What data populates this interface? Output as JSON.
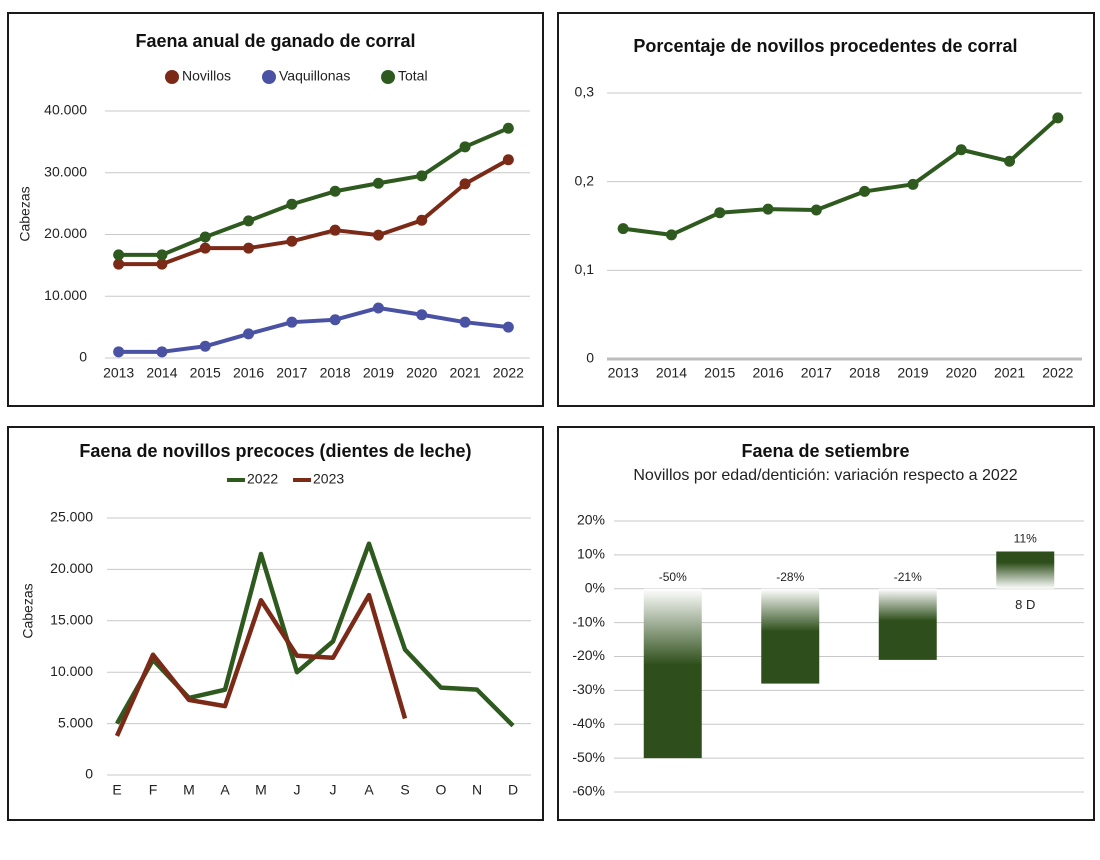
{
  "chart_data": [
    {
      "type": "line",
      "title": "Faena anual de ganado de corral",
      "y_label": "Cabezas",
      "markers": true,
      "grid": true,
      "categories": [
        "2013",
        "2014",
        "2015",
        "2016",
        "2017",
        "2018",
        "2019",
        "2020",
        "2021",
        "2022"
      ],
      "series": [
        {
          "name": "Novillos",
          "color": "#7b2a17",
          "values": [
            15200,
            15200,
            17800,
            17800,
            18900,
            20700,
            19900,
            22300,
            28200,
            32100
          ]
        },
        {
          "name": "Vaquillonas",
          "color": "#4a52a3",
          "values": [
            1000,
            1000,
            1900,
            3900,
            5800,
            6200,
            8100,
            7000,
            5800,
            5000
          ]
        },
        {
          "name": "Total",
          "color": "#2f5a1f",
          "values": [
            16700,
            16700,
            19600,
            22200,
            24900,
            27000,
            28300,
            29500,
            34200,
            37200
          ]
        }
      ],
      "ylim": [
        0,
        40000
      ],
      "yticks": [
        0,
        {
          "value": 10000,
          "label": "10.000"
        },
        {
          "value": 20000,
          "label": "20.000"
        },
        {
          "value": 30000,
          "label": "30.000"
        },
        {
          "value": 40000,
          "label": "40.000"
        }
      ]
    },
    {
      "type": "line",
      "title": "Porcentaje de novillos procedentes de corral",
      "markers": true,
      "grid": true,
      "categories": [
        "2013",
        "2014",
        "2015",
        "2016",
        "2017",
        "2018",
        "2019",
        "2020",
        "2021",
        "2022"
      ],
      "series": [
        {
          "color": "#2f5a1f",
          "values": [
            0.147,
            0.14,
            0.165,
            0.169,
            0.168,
            0.189,
            0.197,
            0.236,
            0.223,
            0.272
          ]
        }
      ],
      "ylim": [
        0,
        0.3
      ],
      "yticks": [
        0,
        {
          "value": 0.1,
          "label": "0,1"
        },
        {
          "value": 0.2,
          "label": "0,2"
        },
        {
          "value": 0.3,
          "label": "0,3"
        }
      ]
    },
    {
      "type": "line",
      "title": "Faena de novillos precoces (dientes de leche)",
      "y_label": "Cabezas",
      "markers": false,
      "grid": true,
      "categories": [
        "E",
        "F",
        "M",
        "A",
        "M",
        "J",
        "J",
        "A",
        "S",
        "O",
        "N",
        "D"
      ],
      "series": [
        {
          "name": "2022",
          "color": "#2f5a1f",
          "values": [
            5000,
            11200,
            7500,
            8300,
            21500,
            10000,
            13000,
            22500,
            12200,
            8500,
            8300,
            4800
          ]
        },
        {
          "name": "2023",
          "color": "#7b2a17",
          "values": [
            3800,
            11700,
            7300,
            6700,
            17000,
            11600,
            11400,
            17500,
            5500,
            null,
            null,
            null
          ]
        }
      ],
      "ylim": [
        0,
        25000
      ],
      "yticks": [
        0,
        {
          "value": 5000,
          "label": "5.000"
        },
        {
          "value": 10000,
          "label": "10.000"
        },
        {
          "value": 15000,
          "label": "15.000"
        },
        {
          "value": 20000,
          "label": "20.000"
        },
        {
          "value": 25000,
          "label": "25.000"
        }
      ]
    },
    {
      "type": "bar",
      "title": "Faena de setiembre",
      "subtitle": "Novillos por edad/dentición: variación respecto a 2022",
      "grid": true,
      "categories": [
        null,
        null,
        null,
        "8 D"
      ],
      "values": [
        -50,
        -28,
        -21,
        11
      ],
      "value_labels": [
        "-50%",
        "-28%",
        "-21%",
        "11%"
      ],
      "color": "#2e4f1b",
      "ylim": [
        -60,
        20
      ],
      "yticks": [
        {
          "value": -60,
          "label": "-60%"
        },
        {
          "value": -50,
          "label": "-50%"
        },
        {
          "value": -40,
          "label": "-40%"
        },
        {
          "value": -30,
          "label": "-30%"
        },
        {
          "value": -20,
          "label": "-20%"
        },
        {
          "value": -10,
          "label": "-10%"
        },
        {
          "value": 0,
          "label": "0%"
        },
        {
          "value": 10,
          "label": "10%"
        },
        {
          "value": 20,
          "label": "20%"
        }
      ]
    }
  ]
}
